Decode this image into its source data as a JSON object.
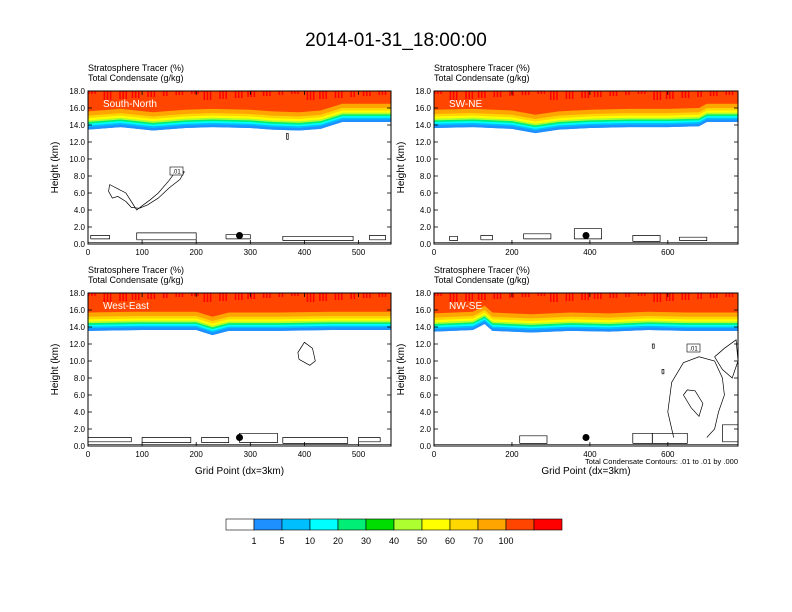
{
  "figure": {
    "title": "2014-01-31_18:00:00",
    "shade_label": "Stratosphere Tracer   (%)",
    "contour_label": "Total Condensate   (g/kg)",
    "ylabel": "Height (km)",
    "xlabel": "Grid Point (dx=3km)",
    "contour_note": "Total Condensate Contours: .01 to .01 by .000",
    "contour_level_label": ".01"
  },
  "colorbar": {
    "labels": [
      "1",
      "5",
      "10",
      "20",
      "30",
      "40",
      "50",
      "60",
      "70",
      "100"
    ],
    "colors": [
      "#ffffff",
      "#1e90ff",
      "#00bfff",
      "#00ffff",
      "#00ee76",
      "#00dd00",
      "#adff2f",
      "#ffff00",
      "#ffd700",
      "#ffa500",
      "#ff4500",
      "#ff0000"
    ]
  },
  "chart_data": [
    {
      "type": "contour",
      "panel_label": "South-North",
      "xlim": [
        0,
        560
      ],
      "ylim": [
        0,
        18
      ],
      "xticks": [
        0,
        100,
        200,
        300,
        400,
        500
      ],
      "yticks": [
        0.0,
        2.0,
        4.0,
        6.0,
        8.0,
        10.0,
        12.0,
        14.0,
        16.0,
        18.0
      ],
      "marker": {
        "x": 280,
        "y": 1.0
      },
      "tropopause_km": [
        [
          0,
          15.6
        ],
        [
          60,
          15.9
        ],
        [
          120,
          15.5
        ],
        [
          180,
          15.8
        ],
        [
          230,
          15.9
        ],
        [
          300,
          15.8
        ],
        [
          340,
          15.6
        ],
        [
          390,
          15.5
        ],
        [
          430,
          15.7
        ],
        [
          470,
          16.5
        ],
        [
          520,
          16.5
        ],
        [
          560,
          16.5
        ]
      ],
      "contours": [
        [
          [
            40,
            7.0
          ],
          [
            55,
            6.5
          ],
          [
            70,
            6.0
          ],
          [
            80,
            5.0
          ],
          [
            90,
            4.0
          ],
          [
            100,
            4.5
          ],
          [
            115,
            5.2
          ],
          [
            130,
            6.0
          ],
          [
            150,
            7.5
          ],
          [
            165,
            8.8
          ],
          [
            178,
            8.5
          ],
          [
            170,
            7.6
          ],
          [
            150,
            6.6
          ],
          [
            130,
            5.4
          ],
          [
            110,
            4.6
          ],
          [
            95,
            4.2
          ],
          [
            80,
            4.3
          ],
          [
            70,
            5.0
          ],
          [
            55,
            5.6
          ],
          [
            45,
            5.4
          ],
          [
            38,
            6.2
          ],
          [
            40,
            7.0
          ]
        ],
        [
          [
            5,
            0.6
          ],
          [
            40,
            0.6
          ],
          [
            40,
            1.0
          ],
          [
            5,
            1.0
          ],
          [
            5,
            0.6
          ]
        ],
        [
          [
            90,
            0.5
          ],
          [
            200,
            0.5
          ],
          [
            200,
            1.3
          ],
          [
            90,
            1.3
          ],
          [
            90,
            0.5
          ]
        ],
        [
          [
            255,
            0.6
          ],
          [
            300,
            0.6
          ],
          [
            300,
            1.1
          ],
          [
            255,
            1.1
          ],
          [
            255,
            0.6
          ]
        ],
        [
          [
            360,
            0.4
          ],
          [
            490,
            0.4
          ],
          [
            490,
            0.9
          ],
          [
            360,
            0.9
          ],
          [
            360,
            0.4
          ]
        ],
        [
          [
            520,
            0.5
          ],
          [
            550,
            0.5
          ],
          [
            550,
            1.0
          ],
          [
            520,
            1.0
          ],
          [
            520,
            0.5
          ]
        ],
        [
          [
            367,
            12.3
          ],
          [
            370,
            12.3
          ],
          [
            370,
            13.0
          ],
          [
            367,
            13.0
          ],
          [
            367,
            12.3
          ]
        ]
      ]
    },
    {
      "type": "contour",
      "panel_label": "SW-NE",
      "xlim": [
        0,
        780
      ],
      "ylim": [
        0,
        18
      ],
      "xticks": [
        0,
        200,
        400,
        600
      ],
      "yticks": [
        0.0,
        2.0,
        4.0,
        6.0,
        8.0,
        10.0,
        12.0,
        14.0,
        16.0,
        18.0
      ],
      "marker": {
        "x": 390,
        "y": 1.0
      },
      "tropopause_km": [
        [
          0,
          15.8
        ],
        [
          100,
          15.9
        ],
        [
          200,
          15.7
        ],
        [
          260,
          15.2
        ],
        [
          320,
          15.6
        ],
        [
          400,
          15.8
        ],
        [
          500,
          15.9
        ],
        [
          600,
          15.9
        ],
        [
          680,
          16.0
        ],
        [
          700,
          16.5
        ],
        [
          780,
          16.5
        ]
      ],
      "contours": [
        [
          [
            40,
            0.4
          ],
          [
            60,
            0.4
          ],
          [
            60,
            0.9
          ],
          [
            40,
            0.9
          ],
          [
            40,
            0.4
          ]
        ],
        [
          [
            120,
            0.5
          ],
          [
            150,
            0.5
          ],
          [
            150,
            1.0
          ],
          [
            120,
            1.0
          ],
          [
            120,
            0.5
          ]
        ],
        [
          [
            230,
            0.6
          ],
          [
            300,
            0.6
          ],
          [
            300,
            1.2
          ],
          [
            230,
            1.2
          ],
          [
            230,
            0.6
          ]
        ],
        [
          [
            360,
            0.6
          ],
          [
            430,
            0.6
          ],
          [
            430,
            1.8
          ],
          [
            360,
            1.8
          ],
          [
            360,
            0.6
          ]
        ],
        [
          [
            510,
            0.3
          ],
          [
            580,
            0.3
          ],
          [
            580,
            1.0
          ],
          [
            510,
            1.0
          ],
          [
            510,
            0.3
          ]
        ],
        [
          [
            630,
            0.4
          ],
          [
            700,
            0.4
          ],
          [
            700,
            0.8
          ],
          [
            630,
            0.8
          ],
          [
            630,
            0.4
          ]
        ]
      ]
    },
    {
      "type": "contour",
      "panel_label": "West-East",
      "xlim": [
        0,
        560
      ],
      "ylim": [
        0,
        18
      ],
      "xticks": [
        0,
        100,
        200,
        300,
        400,
        500
      ],
      "yticks": [
        0.0,
        2.0,
        4.0,
        6.0,
        8.0,
        10.0,
        12.0,
        14.0,
        16.0,
        18.0
      ],
      "marker": {
        "x": 280,
        "y": 1.0
      },
      "tropopause_km": [
        [
          0,
          15.7
        ],
        [
          100,
          15.8
        ],
        [
          200,
          15.8
        ],
        [
          230,
          15.2
        ],
        [
          260,
          15.7
        ],
        [
          350,
          15.7
        ],
        [
          450,
          15.8
        ],
        [
          560,
          15.8
        ]
      ],
      "contours": [
        [
          [
            0,
            0.5
          ],
          [
            80,
            0.5
          ],
          [
            80,
            1.0
          ],
          [
            0,
            1.0
          ],
          [
            0,
            0.5
          ]
        ],
        [
          [
            100,
            0.4
          ],
          [
            190,
            0.4
          ],
          [
            190,
            1.0
          ],
          [
            100,
            1.0
          ],
          [
            100,
            0.4
          ]
        ],
        [
          [
            210,
            0.4
          ],
          [
            260,
            0.4
          ],
          [
            260,
            1.0
          ],
          [
            210,
            1.0
          ],
          [
            210,
            0.4
          ]
        ],
        [
          [
            280,
            0.4
          ],
          [
            350,
            0.4
          ],
          [
            350,
            1.5
          ],
          [
            280,
            1.5
          ],
          [
            280,
            0.4
          ]
        ],
        [
          [
            360,
            0.3
          ],
          [
            480,
            0.3
          ],
          [
            480,
            1.0
          ],
          [
            360,
            1.0
          ],
          [
            360,
            0.3
          ]
        ],
        [
          [
            500,
            0.5
          ],
          [
            540,
            0.5
          ],
          [
            540,
            1.0
          ],
          [
            500,
            1.0
          ],
          [
            500,
            0.5
          ]
        ],
        [
          [
            390,
            10.2
          ],
          [
            410,
            9.5
          ],
          [
            420,
            10.0
          ],
          [
            415,
            11.5
          ],
          [
            400,
            12.2
          ],
          [
            388,
            11.0
          ],
          [
            390,
            10.2
          ]
        ]
      ]
    },
    {
      "type": "contour",
      "panel_label": "NW-SE",
      "xlim": [
        0,
        780
      ],
      "ylim": [
        0,
        18
      ],
      "xticks": [
        0,
        200,
        400,
        600
      ],
      "yticks": [
        0.0,
        2.0,
        4.0,
        6.0,
        8.0,
        10.0,
        12.0,
        14.0,
        16.0,
        18.0
      ],
      "marker": {
        "x": 390,
        "y": 1.0
      },
      "tropopause_km": [
        [
          0,
          15.6
        ],
        [
          100,
          15.8
        ],
        [
          130,
          16.5
        ],
        [
          150,
          15.7
        ],
        [
          250,
          15.5
        ],
        [
          350,
          15.7
        ],
        [
          450,
          15.6
        ],
        [
          550,
          15.8
        ],
        [
          650,
          15.7
        ],
        [
          780,
          15.7
        ]
      ],
      "contours": [
        [
          [
            615,
            1.0
          ],
          [
            600,
            4.0
          ],
          [
            610,
            7.5
          ],
          [
            640,
            9.8
          ],
          [
            680,
            10.5
          ],
          [
            720,
            10.0
          ],
          [
            740,
            8.0
          ],
          [
            745,
            6.0
          ],
          [
            730,
            4.0
          ],
          [
            720,
            2.0
          ],
          [
            700,
            1.0
          ]
        ],
        [
          [
            640,
            6.0
          ],
          [
            660,
            4.5
          ],
          [
            680,
            3.5
          ],
          [
            690,
            5.0
          ],
          [
            670,
            6.5
          ],
          [
            650,
            6.6
          ],
          [
            640,
            6.0
          ]
        ],
        [
          [
            720,
            10.5
          ],
          [
            745,
            11.5
          ],
          [
            775,
            12.5
          ],
          [
            780,
            10.0
          ],
          [
            765,
            8.0
          ],
          [
            740,
            9.0
          ],
          [
            720,
            10.5
          ]
        ],
        [
          [
            510,
            0.3
          ],
          [
            560,
            0.3
          ],
          [
            560,
            1.5
          ],
          [
            510,
            1.5
          ],
          [
            510,
            0.3
          ]
        ],
        [
          [
            560,
            0.3
          ],
          [
            650,
            0.3
          ],
          [
            650,
            1.5
          ],
          [
            560,
            1.5
          ],
          [
            560,
            0.3
          ]
        ],
        [
          [
            220,
            0.3
          ],
          [
            290,
            0.3
          ],
          [
            290,
            1.2
          ],
          [
            220,
            1.2
          ],
          [
            220,
            0.3
          ]
        ],
        [
          [
            740,
            0.5
          ],
          [
            780,
            0.5
          ],
          [
            780,
            2.5
          ],
          [
            740,
            2.5
          ],
          [
            740,
            0.5
          ]
        ],
        [
          [
            560,
            11.5
          ],
          [
            565,
            11.5
          ],
          [
            565,
            12.0
          ],
          [
            560,
            12.0
          ],
          [
            560,
            11.5
          ]
        ],
        [
          [
            585,
            8.5
          ],
          [
            590,
            8.5
          ],
          [
            590,
            9.0
          ],
          [
            585,
            9.0
          ],
          [
            585,
            8.5
          ]
        ]
      ]
    }
  ]
}
